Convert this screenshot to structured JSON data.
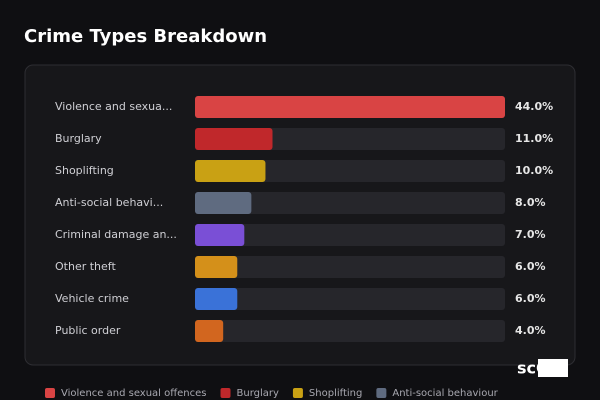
{
  "chart_data": {
    "type": "bar",
    "orientation": "horizontal",
    "title": "Crime Types Breakdown",
    "categories": [
      "Violence and sexua...",
      "Burglary",
      "Shoplifting",
      "Anti-social behavi...",
      "Criminal damage an...",
      "Other theft",
      "Vehicle crime",
      "Public order"
    ],
    "values": [
      44,
      11,
      10,
      8,
      7,
      6,
      6,
      4
    ],
    "value_labels": [
      "44.0%",
      "11.0%",
      "10.0%",
      "8.0%",
      "7.0%",
      "6.0%",
      "6.0%",
      "4.0%"
    ],
    "colors": [
      "#d94444",
      "#c0282b",
      "#c9a114",
      "#5f6b80",
      "#7a4fd6",
      "#d4901a",
      "#3a72d8",
      "#d2661f"
    ],
    "xlim": [
      0,
      44
    ],
    "legend": [
      {
        "name": "Violence and sexual offences",
        "color": "#d94444"
      },
      {
        "name": "Burglary",
        "color": "#c0282b"
      },
      {
        "name": "Shoplifting",
        "color": "#c9a114"
      },
      {
        "name": "Anti-social behaviour",
        "color": "#5f6b80"
      }
    ]
  },
  "watermark": "scOS"
}
